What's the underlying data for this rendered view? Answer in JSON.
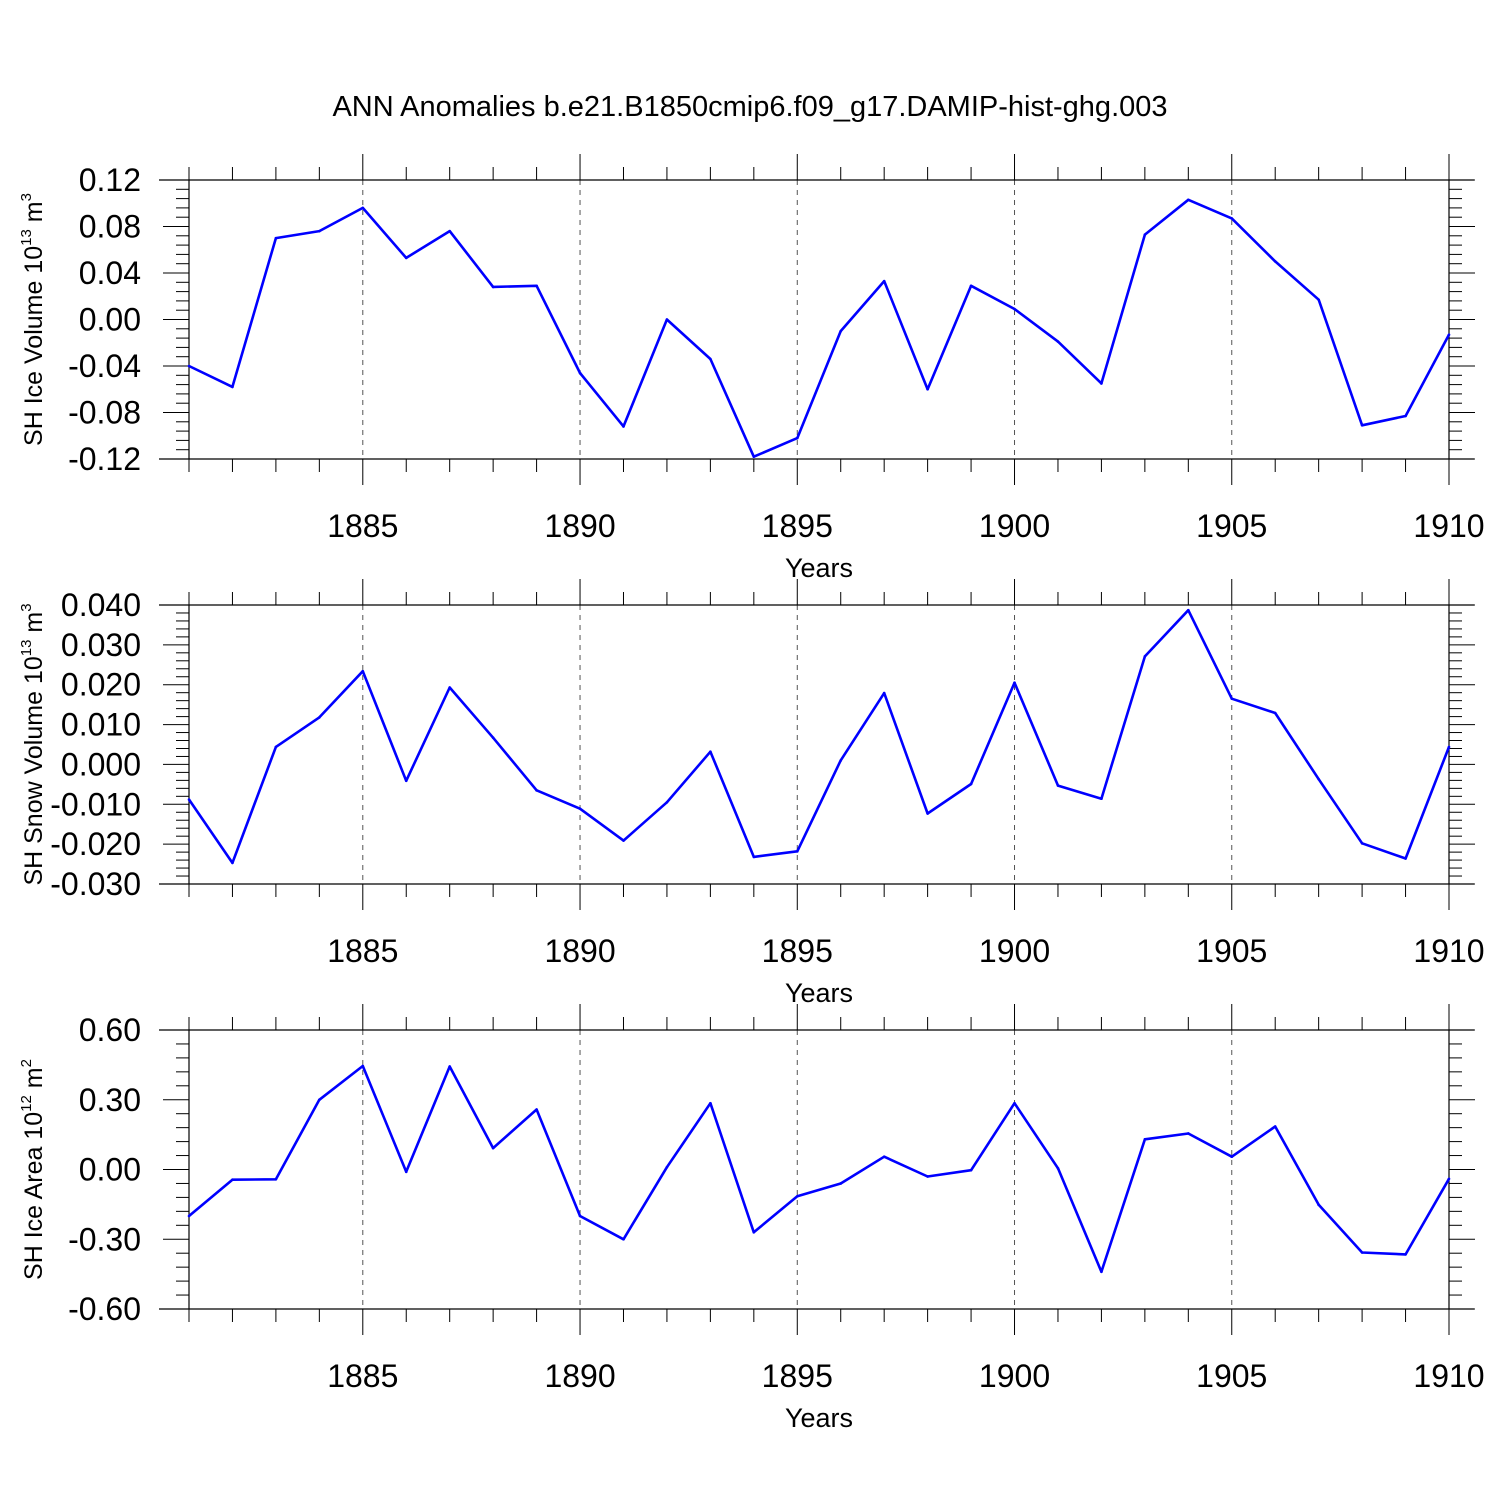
{
  "figure": {
    "title": "ANN Anomalies b.e21.B1850cmip6.f09_g17.DAMIP-hist-ghg.003"
  },
  "colors": {
    "line": "#0000ff",
    "axes": "#000000",
    "grid": "#000000"
  },
  "chart_data": [
    {
      "type": "line",
      "title": "",
      "xlabel": "Years",
      "ylabel": "SH Ice Volume 10",
      "ylabel_exp": "13",
      "ylabel_unit": "m",
      "ylabel_unit_exp": "3",
      "xlim": [
        1881,
        1910
      ],
      "ylim": [
        -0.12,
        0.12
      ],
      "xticks": [
        1885,
        1890,
        1895,
        1900,
        1905,
        1910
      ],
      "yticks": [
        0.12,
        0.08,
        0.04,
        0.0,
        -0.04,
        -0.08,
        -0.12
      ],
      "ytick_labels": [
        "0.12",
        "0.08",
        "0.04",
        "0.00",
        "-0.04",
        "-0.08",
        "-0.12"
      ],
      "grid": "vertical dashed at major x ticks",
      "series": [
        {
          "x": [
            1881,
            1882,
            1883,
            1884,
            1885,
            1886,
            1887,
            1888,
            1889,
            1890,
            1891,
            1892,
            1893,
            1894,
            1895,
            1896,
            1897,
            1898,
            1899,
            1900,
            1901,
            1902,
            1903,
            1904,
            1905,
            1906,
            1907,
            1908,
            1909,
            1910
          ],
          "values": [
            -0.04,
            -0.058,
            0.07,
            0.076,
            0.096,
            0.053,
            0.076,
            0.028,
            0.029,
            -0.046,
            -0.092,
            0.0,
            -0.034,
            -0.118,
            -0.102,
            -0.01,
            0.033,
            -0.06,
            0.029,
            0.009,
            -0.019,
            -0.055,
            0.073,
            0.103,
            0.087,
            0.05,
            0.017,
            -0.091,
            -0.083,
            -0.013
          ]
        }
      ]
    },
    {
      "type": "line",
      "title": "",
      "xlabel": "Years",
      "ylabel": "SH Snow Volume 10",
      "ylabel_exp": "13",
      "ylabel_unit": "m",
      "ylabel_unit_exp": "3",
      "xlim": [
        1881,
        1910
      ],
      "ylim": [
        -0.03,
        0.04
      ],
      "xticks": [
        1885,
        1890,
        1895,
        1900,
        1905,
        1910
      ],
      "yticks": [
        0.04,
        0.03,
        0.02,
        0.01,
        0.0,
        -0.01,
        -0.02,
        -0.03
      ],
      "ytick_labels": [
        "0.040",
        "0.030",
        "0.020",
        "0.010",
        "0.000",
        "-0.010",
        "-0.020",
        "-0.030"
      ],
      "grid": "vertical dashed at major x ticks",
      "series": [
        {
          "x": [
            1881,
            1882,
            1883,
            1884,
            1885,
            1886,
            1887,
            1888,
            1889,
            1890,
            1891,
            1892,
            1893,
            1894,
            1895,
            1896,
            1897,
            1898,
            1899,
            1900,
            1901,
            1902,
            1903,
            1904,
            1905,
            1906,
            1907,
            1908,
            1909,
            1910
          ],
          "values": [
            -0.0088,
            -0.0247,
            0.0044,
            0.0118,
            0.0234,
            -0.0041,
            0.0193,
            0.0067,
            -0.0065,
            -0.0111,
            -0.0191,
            -0.0095,
            0.0032,
            -0.0232,
            -0.0218,
            0.001,
            0.0179,
            -0.0123,
            -0.0049,
            0.0205,
            -0.0053,
            -0.0086,
            0.0271,
            0.0387,
            0.0165,
            0.0129,
            -0.0037,
            -0.0198,
            -0.0236,
            0.0044
          ]
        }
      ]
    },
    {
      "type": "line",
      "title": "",
      "xlabel": "Years",
      "ylabel": "SH Ice Area 10",
      "ylabel_exp": "12",
      "ylabel_unit": "m",
      "ylabel_unit_exp": "2",
      "xlim": [
        1881,
        1910
      ],
      "ylim": [
        -0.6,
        0.6
      ],
      "xticks": [
        1885,
        1890,
        1895,
        1900,
        1905,
        1910
      ],
      "yticks": [
        0.6,
        0.3,
        0.0,
        -0.3,
        -0.6
      ],
      "ytick_labels": [
        "0.60",
        "0.30",
        "0.00",
        "-0.30",
        "-0.60"
      ],
      "grid": "vertical dashed at major x ticks",
      "series": [
        {
          "x": [
            1881,
            1882,
            1883,
            1884,
            1885,
            1886,
            1887,
            1888,
            1889,
            1890,
            1891,
            1892,
            1893,
            1894,
            1895,
            1896,
            1897,
            1898,
            1899,
            1900,
            1901,
            1902,
            1903,
            1904,
            1905,
            1906,
            1907,
            1908,
            1909,
            1910
          ],
          "values": [
            -0.2,
            -0.044,
            -0.042,
            0.3,
            0.445,
            -0.01,
            0.443,
            0.092,
            0.258,
            -0.2,
            -0.3,
            0.01,
            0.285,
            -0.27,
            -0.115,
            -0.06,
            0.055,
            -0.03,
            -0.003,
            0.285,
            0.005,
            -0.44,
            0.13,
            0.155,
            0.055,
            0.185,
            -0.152,
            -0.357,
            -0.365,
            -0.04
          ]
        }
      ]
    }
  ]
}
